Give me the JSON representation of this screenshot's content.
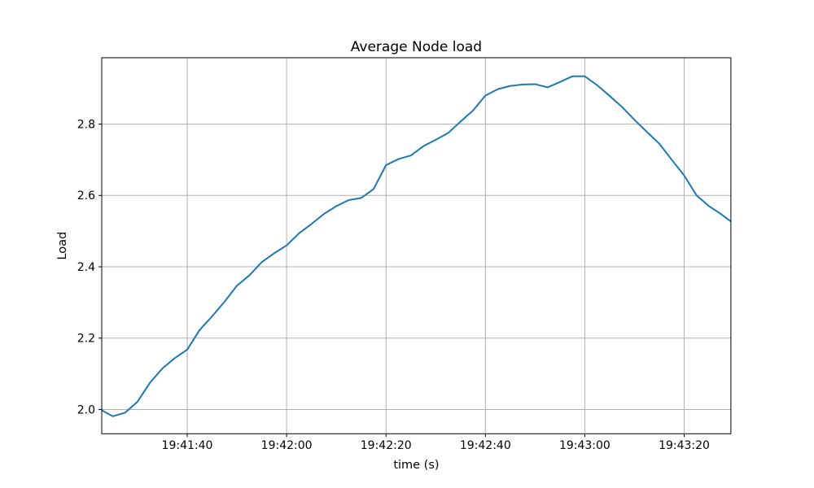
{
  "figure": {
    "background": "#ffffff"
  },
  "chart_data": {
    "type": "line",
    "title": "Average Node load",
    "xlabel": "time (s)",
    "ylabel": "Load",
    "grid": true,
    "legend_position": "none",
    "line_color": "#1f77b4",
    "grid_color": "#b0b0b0",
    "spine_color": "#000000",
    "text_color": "#000000",
    "time_origin": "19:40:00",
    "x_ticks": [
      {
        "s": 100,
        "label": "19:41:40"
      },
      {
        "s": 120,
        "label": "19:42:00"
      },
      {
        "s": 140,
        "label": "19:42:20"
      },
      {
        "s": 160,
        "label": "19:42:40"
      },
      {
        "s": 180,
        "label": "19:43:00"
      },
      {
        "s": 200,
        "label": "19:43:20"
      }
    ],
    "y_ticks": [
      {
        "v": 2.0,
        "label": "2.0"
      },
      {
        "v": 2.2,
        "label": "2.2"
      },
      {
        "v": 2.4,
        "label": "2.4"
      },
      {
        "v": 2.6,
        "label": "2.6"
      },
      {
        "v": 2.8,
        "label": "2.8"
      }
    ],
    "xlim_s": [
      82.8,
      209.4
    ],
    "ylim": [
      1.932,
      2.986
    ],
    "series": [
      {
        "name": "average node load",
        "x_s": [
          82.8,
          85,
          87.5,
          90,
          92.5,
          95,
          97.5,
          100,
          102.5,
          105,
          107.5,
          110,
          112.5,
          115,
          117.5,
          120,
          122.5,
          125,
          127.5,
          130,
          132.5,
          135,
          137.5,
          140,
          142.5,
          145,
          147.5,
          150,
          152.5,
          155,
          157.5,
          160,
          162.5,
          165,
          167.5,
          170,
          172.5,
          175,
          177.5,
          180,
          182.5,
          185,
          187.5,
          190,
          192.5,
          195,
          197.5,
          200,
          202.5,
          205,
          207.5,
          209.4
        ],
        "y": [
          1.998,
          1.981,
          1.991,
          2.022,
          2.075,
          2.115,
          2.144,
          2.168,
          2.223,
          2.261,
          2.302,
          2.347,
          2.376,
          2.413,
          2.438,
          2.46,
          2.494,
          2.52,
          2.548,
          2.57,
          2.587,
          2.593,
          2.618,
          2.685,
          2.702,
          2.712,
          2.738,
          2.756,
          2.775,
          2.807,
          2.838,
          2.88,
          2.898,
          2.907,
          2.911,
          2.912,
          2.903,
          2.918,
          2.934,
          2.934,
          2.909,
          2.879,
          2.848,
          2.812,
          2.778,
          2.745,
          2.7,
          2.656,
          2.6,
          2.57,
          2.547,
          2.527
        ]
      }
    ]
  }
}
